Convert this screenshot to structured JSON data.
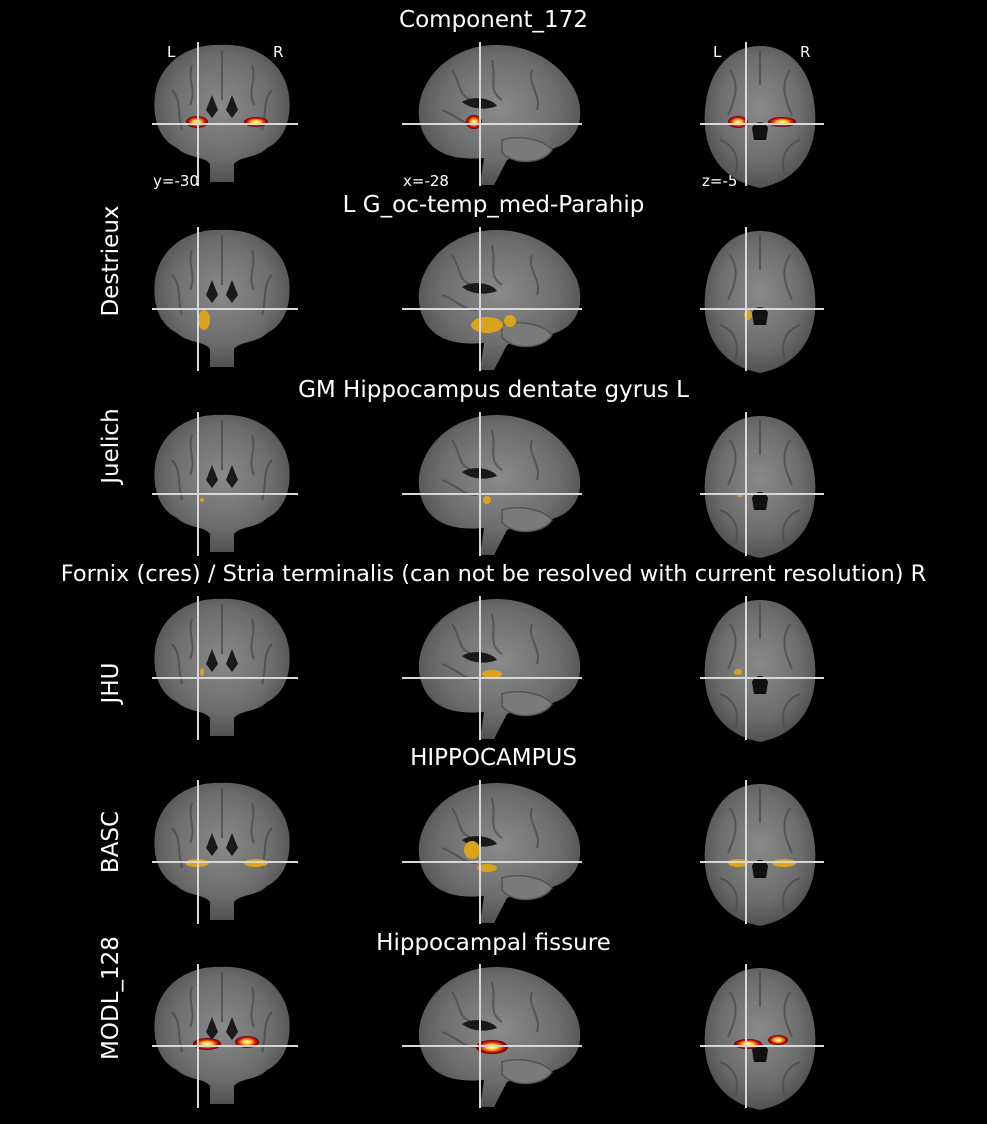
{
  "figure_title": "Component_172",
  "orientation": {
    "left": "L",
    "right": "R"
  },
  "coordinates": {
    "coronal": "y=-30",
    "sagittal": "x=-28",
    "axial": "z=-5"
  },
  "rows": [
    {
      "label": "",
      "region": "Component_172",
      "overlay": "hot"
    },
    {
      "label": "Destrieux",
      "region": "L G_oc-temp_med-Parahip",
      "overlay": "gold"
    },
    {
      "label": "Juelich",
      "region": "GM Hippocampus dentate gyrus L",
      "overlay": "gold"
    },
    {
      "label": "JHU",
      "region": "Fornix (cres) / Stria terminalis (can not be resolved with current resolution) R",
      "overlay": "gold"
    },
    {
      "label": "BASC",
      "region": "HIPPOCAMPUS",
      "overlay": "gold"
    },
    {
      "label": "MODL_128",
      "region": "Hippocampal fissure",
      "overlay": "hot"
    }
  ],
  "colors": {
    "background": "#000000",
    "atlas_overlay": "#d9a21f",
    "hot_overlay": "#e01c10",
    "crosshair": "#d8d8d8"
  }
}
